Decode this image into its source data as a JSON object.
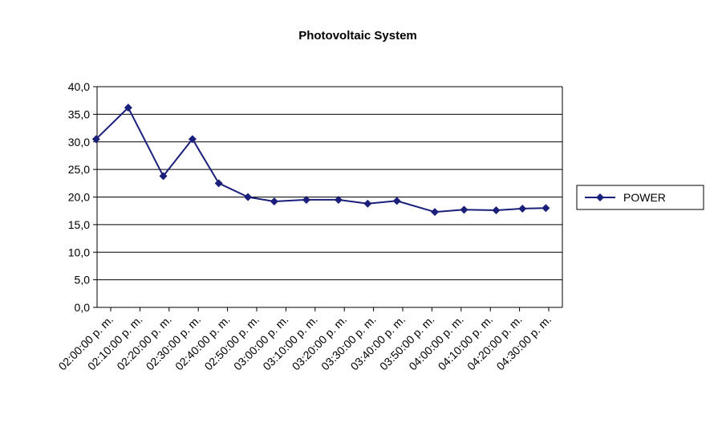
{
  "chart_data": {
    "type": "line",
    "title": "Photovoltaic System",
    "xlabel": "",
    "ylabel": "",
    "ylim": [
      0,
      40
    ],
    "y_ticks": [
      "0,0",
      "5,0",
      "10,0",
      "15,0",
      "20,0",
      "25,0",
      "30,0",
      "35,0",
      "40,0"
    ],
    "grid": "horizontal",
    "legend_position": "right",
    "x_tick_labels": [
      "02:00:00 p. m.",
      "02:10:00 p. m.",
      "02:20:00 p. m.",
      "02:30:00 p. m.",
      "02:40:00 p. m.",
      "02:50:00 p. m.",
      "03:00:00 p. m.",
      "03:10:00 p. m.",
      "03:20:00 p. m.",
      "03:30:00 p. m.",
      "03:40:00 p. m.",
      "03:50:00 p. m.",
      "04:00:00 p. m.",
      "04:10:00 p. m.",
      "04:20:00 p. m.",
      "04:30:00 p. m."
    ],
    "x_range": [
      "02:00:00 p. m.",
      "04:30:00 p. m."
    ],
    "series": [
      {
        "name": "POWER",
        "color": "#1a1f7a",
        "marker": "diamond",
        "points": [
          {
            "t": "01:55:00 p. m.",
            "y": 30.5
          },
          {
            "t": "02:06:00 p. m.",
            "y": 36.2
          },
          {
            "t": "02:18:00 p. m.",
            "y": 23.8
          },
          {
            "t": "02:28:00 p. m.",
            "y": 30.5
          },
          {
            "t": "02:37:00 p. m.",
            "y": 22.5
          },
          {
            "t": "02:47:00 p. m.",
            "y": 20.0
          },
          {
            "t": "02:56:00 p. m.",
            "y": 19.2
          },
          {
            "t": "03:07:00 p. m.",
            "y": 19.5
          },
          {
            "t": "03:18:00 p. m.",
            "y": 19.5
          },
          {
            "t": "03:28:00 p. m.",
            "y": 18.8
          },
          {
            "t": "03:38:00 p. m.",
            "y": 19.3
          },
          {
            "t": "03:51:00 p. m.",
            "y": 17.3
          },
          {
            "t": "04:01:00 p. m.",
            "y": 17.7
          },
          {
            "t": "04:12:00 p. m.",
            "y": 17.6
          },
          {
            "t": "04:21:00 p. m.",
            "y": 17.9
          },
          {
            "t": "04:29:00 p. m.",
            "y": 18.0
          }
        ]
      }
    ]
  }
}
